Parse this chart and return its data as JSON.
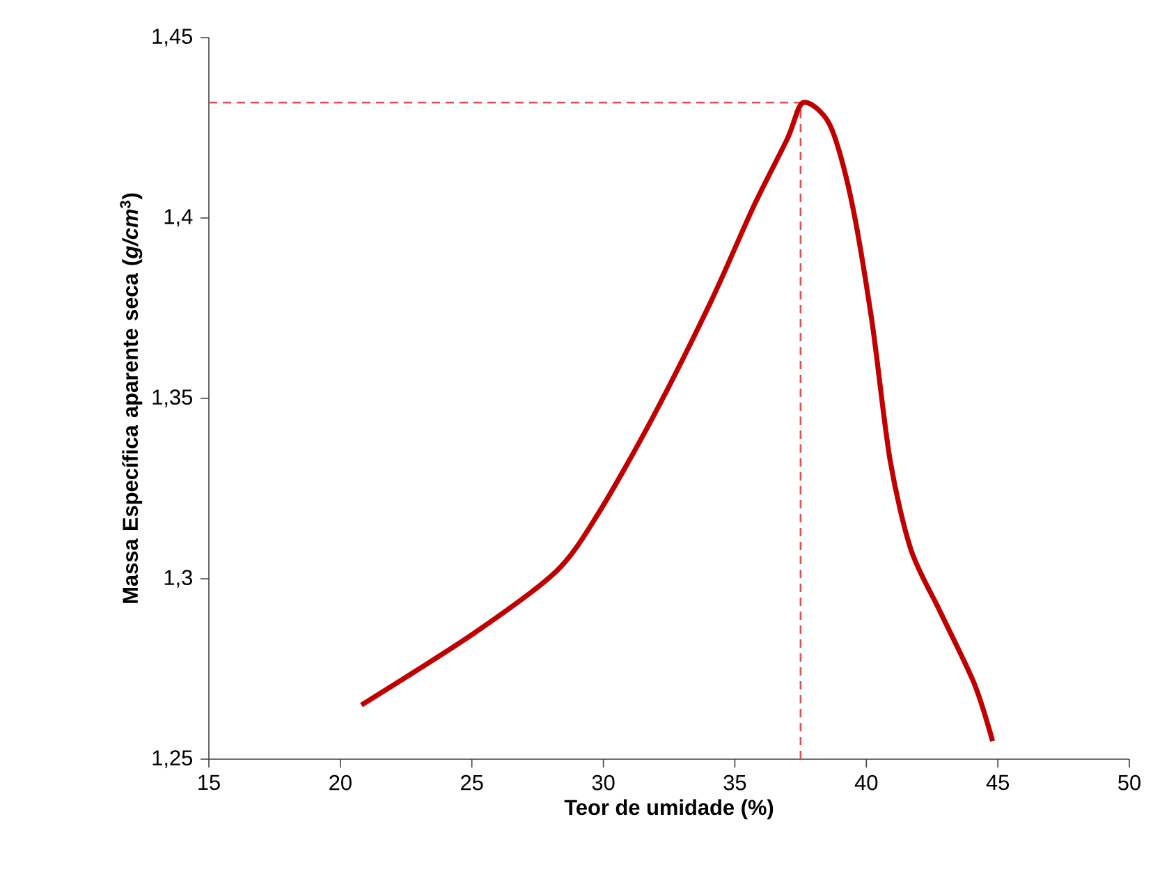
{
  "chart_data": {
    "type": "line",
    "xlabel": "Teor de umidade (%)",
    "ylabel": "Massa Específica aparente seca (*g/cm*$^{3}$)",
    "xlim": [
      15,
      50
    ],
    "ylim": [
      1.25,
      1.45
    ],
    "xticks": [
      15,
      20,
      25,
      30,
      35,
      40,
      45,
      50
    ],
    "yticks": [
      {
        "value": 1.25,
        "label": "1,25"
      },
      {
        "value": 1.3,
        "label": "1,3"
      },
      {
        "value": 1.35,
        "label": "1,35"
      },
      {
        "value": 1.4,
        "label": "1,4"
      },
      {
        "value": 1.45,
        "label": "1,45"
      }
    ],
    "series": [
      {
        "color": "#c00000",
        "x": [
          20.8,
          25.1,
          28.2,
          29.8,
          31.9,
          34.1,
          35.7,
          37.0,
          37.6,
          38.6,
          39.4,
          40.2,
          40.9,
          41.7,
          42.8,
          44.1,
          44.8
        ],
        "values": [
          1.265,
          1.285,
          1.302,
          1.318,
          1.345,
          1.377,
          1.403,
          1.422,
          1.432,
          1.426,
          1.406,
          1.372,
          1.333,
          1.308,
          1.291,
          1.271,
          1.255
        ]
      }
    ],
    "ref_lines": [
      {
        "axis": "x",
        "value": 37.5,
        "color": "#e05050",
        "line_style": "dashed"
      },
      {
        "axis": "y",
        "value": 1.432,
        "color": "#e05050",
        "line_style": "dashed"
      }
    ]
  }
}
